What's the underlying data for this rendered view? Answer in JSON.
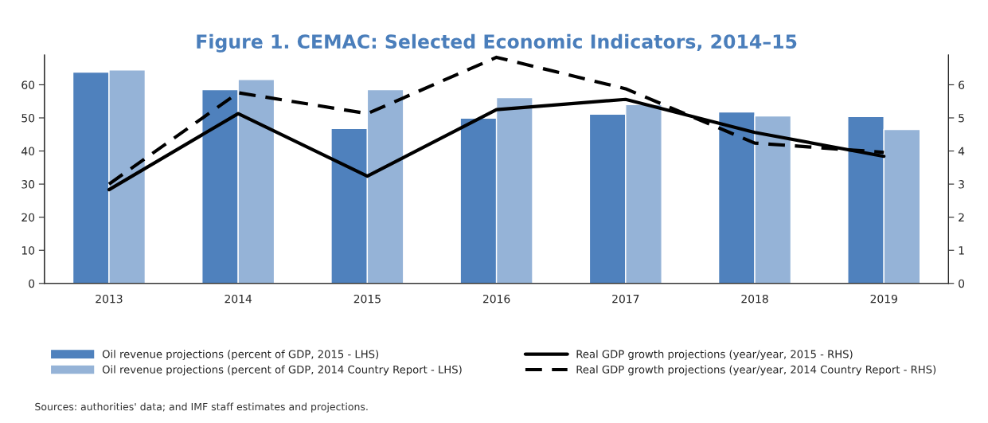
{
  "chart_data": {
    "type": "bar",
    "title": "Figure 1. CEMAC: Selected Economic Indicators, 2014–15",
    "categories": [
      "2013",
      "2014",
      "2015",
      "2016",
      "2017",
      "2018",
      "2019"
    ],
    "series": [
      {
        "name": "Oil revenue projections (percent of GDP, 2015 - LHS)",
        "color": "#4f81bd",
        "values": [
          63.8,
          58.5,
          46.8,
          49.9,
          51.1,
          51.8,
          50.4
        ]
      },
      {
        "name": "Oil revenue projections (percent of GDP, 2014 Country Report - LHS)",
        "color": "#95b3d7",
        "values": [
          64.5,
          61.6,
          58.5,
          56.1,
          54.0,
          50.6,
          46.5
        ]
      },
      {
        "name": "Real GDP growth projections (year/year, 2015 - RHS)",
        "type": "line",
        "axis": "y2",
        "color": "#000000",
        "line_style": "solid",
        "values": [
          2.83,
          5.13,
          3.24,
          5.25,
          5.56,
          4.56,
          3.84
        ]
      },
      {
        "name": "Real GDP growth projections (year/year, 2014 Country Report - RHS)",
        "type": "line",
        "axis": "y2",
        "color": "#000000",
        "line_style": "dashed",
        "values": [
          3.0,
          5.76,
          5.13,
          6.83,
          5.88,
          4.24,
          3.96
        ]
      }
    ],
    "ylim": [
      0,
      69
    ],
    "yticks": [
      0,
      10,
      20,
      30,
      40,
      50,
      60
    ],
    "y2lim": [
      0,
      6.9
    ],
    "y2ticks": [
      0,
      1,
      2,
      3,
      4,
      5,
      6
    ],
    "legend": "bottom",
    "grid": false,
    "annotations": [
      "Sources: authorities' data; and IMF staff estimates and projections."
    ]
  }
}
